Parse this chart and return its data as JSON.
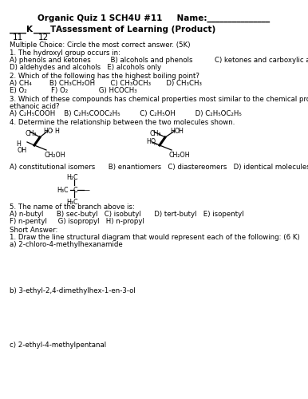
{
  "title": "Organic Quiz 1 SCH4U #11     Name:_______________",
  "subtitle_k": "____K",
  "subtitle_t": "____T",
  "subtitle_rest": "   Assessment of Learning (Product)",
  "sub_nums": "11        12",
  "mc_header": "Multiple Choice: Circle the most correct answer. (5K)",
  "q1_line1": "1. The hydroxyl group occurs in:",
  "q1_line2": "A) phenols and ketones         B) alcohols and phenols          C) ketones and carboxylic acids",
  "q1_line3": "D) aldehydes and alcohols   E) alcohols only",
  "q2_line1": "2. Which of the following has the highest boiling point?",
  "q2_line2": "A) CH₄        B) CH₃CH₂OH       C) CH₃OCH₃       D) CH₃CH₃",
  "q2_line3": "E) O₂           F) O₂              G) HCOCH₃",
  "q3_line1": "3. Which of these compounds has chemical properties most similar to the chemical properties of",
  "q3_line2": "ethanoic acid?",
  "q3_line3": "A) C₂H₅COOH    B) C₂H₅COOC₂H₅         C) C₂H₅OH         D) C₂H₅OC₂H₅",
  "q4_line1": "4. Determine the relationship between the two molecules shown.",
  "q4_ans": "A) constitutional isomers      B) enantiomers   C) diastereomers   D) identical molecules",
  "q5_label": "5. The name of the branch above is:",
  "q5_line1": "A) n-butyl      B) sec-butyl   C) isobutyl      D) tert-butyl   E) isopentyl",
  "q5_line2": "F) n-pentyl     G) isopropyl   H) n-propyl",
  "sa_header": "Short Answer:",
  "sa1_line1": "1. Draw the line structural diagram that would represent each of the following: (6 K)",
  "sa1a": "a) 2-chloro-4-methylhexanamide",
  "sa1b": "b) 3-ethyl-2,4-dimethylhex-1-en-3-ol",
  "sa1c": "c) 2-ethyl-4-methylpentanal",
  "bg_color": "#ffffff",
  "text_color": "#000000"
}
